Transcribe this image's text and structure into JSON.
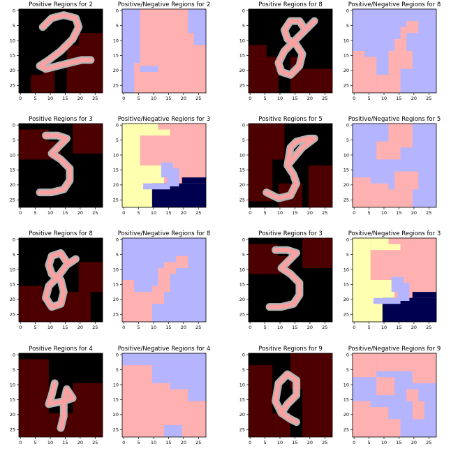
{
  "colors": {
    "background": "#000000",
    "dark_red": "#4d0000",
    "pink": "#ffb0b0",
    "blue": "#b4b4ff",
    "yellow": "#ffffb0",
    "navy": "#000050",
    "digit_gray": "#b4b4b4",
    "digit_pink": "#ffa0a0"
  },
  "chart_data": [
    {
      "type": "heatmap",
      "title": "Positive Regions for 2",
      "xticks": [
        0,
        5,
        10,
        15,
        20,
        25
      ],
      "yticks": [
        0,
        5,
        10,
        15,
        20,
        25
      ],
      "xlim": [
        0,
        27
      ],
      "ylim": [
        27,
        0
      ],
      "kind": "positive",
      "digit": "2"
    },
    {
      "type": "heatmap",
      "title": "Positive/Negative Regions for 2",
      "xticks": [
        0,
        5,
        10,
        15,
        20,
        25
      ],
      "yticks": [
        0,
        5,
        10,
        15,
        20,
        25
      ],
      "xlim": [
        0,
        27
      ],
      "ylim": [
        27,
        0
      ],
      "kind": "posneg",
      "digit": "2"
    },
    {
      "type": "heatmap",
      "title": "Positive Regions for 8",
      "xticks": [
        0,
        5,
        10,
        15,
        20,
        25
      ],
      "yticks": [
        0,
        5,
        10,
        15,
        20,
        25
      ],
      "xlim": [
        0,
        27
      ],
      "ylim": [
        27,
        0
      ],
      "kind": "positive",
      "digit": "8a"
    },
    {
      "type": "heatmap",
      "title": "Positive/Negative Regions for 8",
      "xticks": [
        0,
        5,
        10,
        15,
        20,
        25
      ],
      "yticks": [
        0,
        5,
        10,
        15,
        20,
        25
      ],
      "xlim": [
        0,
        27
      ],
      "ylim": [
        27,
        0
      ],
      "kind": "posneg",
      "digit": "8a"
    },
    {
      "type": "heatmap",
      "title": "Positive Regions for 3",
      "xticks": [
        0,
        5,
        10,
        15,
        20,
        25
      ],
      "yticks": [
        0,
        5,
        10,
        15,
        20,
        25
      ],
      "xlim": [
        0,
        27
      ],
      "ylim": [
        27,
        0
      ],
      "kind": "positive",
      "digit": "3"
    },
    {
      "type": "heatmap",
      "title": "Positive/Negative Regions for 3",
      "xticks": [
        0,
        5,
        10,
        15,
        20,
        25
      ],
      "yticks": [
        0,
        5,
        10,
        15,
        20,
        25
      ],
      "xlim": [
        0,
        27
      ],
      "ylim": [
        27,
        0
      ],
      "kind": "posneg",
      "digit": "3"
    },
    {
      "type": "heatmap",
      "title": "Positive Regions for 5",
      "xticks": [
        0,
        5,
        10,
        15,
        20,
        25
      ],
      "yticks": [
        0,
        5,
        10,
        15,
        20,
        25
      ],
      "xlim": [
        0,
        27
      ],
      "ylim": [
        27,
        0
      ],
      "kind": "positive",
      "digit": "5"
    },
    {
      "type": "heatmap",
      "title": "Positive/Negative Regions for 5",
      "xticks": [
        0,
        5,
        10,
        15,
        20,
        25
      ],
      "yticks": [
        0,
        5,
        10,
        15,
        20,
        25
      ],
      "xlim": [
        0,
        27
      ],
      "ylim": [
        27,
        0
      ],
      "kind": "posneg",
      "digit": "5"
    },
    {
      "type": "heatmap",
      "title": "Positive Regions for 8",
      "xticks": [
        0,
        5,
        10,
        15,
        20,
        25
      ],
      "yticks": [
        0,
        5,
        10,
        15,
        20,
        25
      ],
      "xlim": [
        0,
        27
      ],
      "ylim": [
        27,
        0
      ],
      "kind": "positive",
      "digit": "8b"
    },
    {
      "type": "heatmap",
      "title": "Positive/Negative Regions for 8",
      "xticks": [
        0,
        5,
        10,
        15,
        20,
        25
      ],
      "yticks": [
        0,
        5,
        10,
        15,
        20,
        25
      ],
      "xlim": [
        0,
        27
      ],
      "ylim": [
        27,
        0
      ],
      "kind": "posneg",
      "digit": "8b"
    },
    {
      "type": "heatmap",
      "title": "Positive Regions for 3",
      "xticks": [
        0,
        5,
        10,
        15,
        20,
        25
      ],
      "yticks": [
        0,
        5,
        10,
        15,
        20,
        25
      ],
      "xlim": [
        0,
        27
      ],
      "ylim": [
        27,
        0
      ],
      "kind": "positive",
      "digit": "3"
    },
    {
      "type": "heatmap",
      "title": "Positive/Negative Regions for 3",
      "xticks": [
        0,
        5,
        10,
        15,
        20,
        25
      ],
      "yticks": [
        0,
        5,
        10,
        15,
        20,
        25
      ],
      "xlim": [
        0,
        27
      ],
      "ylim": [
        27,
        0
      ],
      "kind": "posneg",
      "digit": "3"
    },
    {
      "type": "heatmap",
      "title": "Positive Regions for 4",
      "xticks": [
        0,
        5,
        10,
        15,
        20,
        25
      ],
      "yticks": [
        0,
        5,
        10,
        15,
        20,
        25
      ],
      "xlim": [
        0,
        27
      ],
      "ylim": [
        27,
        0
      ],
      "kind": "positive",
      "digit": "4"
    },
    {
      "type": "heatmap",
      "title": "Positive/Negative Regions for 4",
      "xticks": [
        0,
        5,
        10,
        15,
        20,
        25
      ],
      "yticks": [
        0,
        5,
        10,
        15,
        20,
        25
      ],
      "xlim": [
        0,
        27
      ],
      "ylim": [
        27,
        0
      ],
      "kind": "posneg",
      "digit": "4"
    },
    {
      "type": "heatmap",
      "title": "Positive Regions for 9",
      "xticks": [
        0,
        5,
        10,
        15,
        20,
        25
      ],
      "yticks": [
        0,
        5,
        10,
        15,
        20,
        25
      ],
      "xlim": [
        0,
        27
      ],
      "ylim": [
        27,
        0
      ],
      "kind": "positive",
      "digit": "9"
    },
    {
      "type": "heatmap",
      "title": "Positive/Negative Regions for 9",
      "xticks": [
        0,
        5,
        10,
        15,
        20,
        25
      ],
      "yticks": [
        0,
        5,
        10,
        15,
        20,
        25
      ],
      "xlim": [
        0,
        27
      ],
      "ylim": [
        27,
        0
      ],
      "kind": "posneg",
      "digit": "9"
    }
  ]
}
